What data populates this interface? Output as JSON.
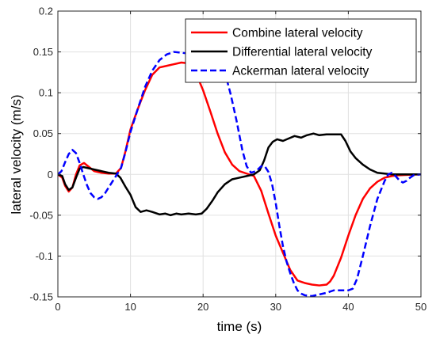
{
  "chart_data": {
    "type": "line",
    "title": "",
    "xlabel": "time (s)",
    "ylabel": "lateral velocity (m/s)",
    "xlim": [
      0,
      50
    ],
    "ylim": [
      -0.15,
      0.2
    ],
    "xticks": [
      0,
      10,
      20,
      30,
      40,
      50
    ],
    "xtick_labels": [
      "0",
      "10",
      "20",
      "30",
      "40",
      "50"
    ],
    "yticks": [
      -0.15,
      -0.1,
      -0.05,
      0,
      0.05,
      0.1,
      0.15,
      0.2
    ],
    "ytick_labels": [
      "-0.15",
      "-0.1",
      "-0.05",
      "0",
      "0.05",
      "0.1",
      "0.15",
      "0.2"
    ],
    "grid": true,
    "legend_position": "top-right",
    "series": [
      {
        "name": "Combine lateral velocity",
        "color": "#ff0000",
        "dash": "solid",
        "points": [
          [
            0,
            0
          ],
          [
            0.6,
            -0.004
          ],
          [
            1,
            -0.014
          ],
          [
            1.5,
            -0.021
          ],
          [
            2,
            -0.016
          ],
          [
            2.5,
            0
          ],
          [
            3,
            0.011
          ],
          [
            3.6,
            0.014
          ],
          [
            4.3,
            0.009
          ],
          [
            5,
            0.004
          ],
          [
            6,
            0.002
          ],
          [
            7,
            0.001
          ],
          [
            8,
            0.001
          ],
          [
            8.7,
            0.008
          ],
          [
            9.3,
            0.028
          ],
          [
            10,
            0.055
          ],
          [
            11,
            0.08
          ],
          [
            12,
            0.103
          ],
          [
            13,
            0.122
          ],
          [
            14,
            0.131
          ],
          [
            15,
            0.133
          ],
          [
            16,
            0.135
          ],
          [
            17,
            0.137
          ],
          [
            18,
            0.136
          ],
          [
            18.6,
            0.131
          ],
          [
            19.2,
            0.12
          ],
          [
            20,
            0.103
          ],
          [
            21,
            0.077
          ],
          [
            22,
            0.05
          ],
          [
            23,
            0.027
          ],
          [
            24,
            0.012
          ],
          [
            25,
            0.004
          ],
          [
            26,
            0.001
          ],
          [
            27,
            -0.002
          ],
          [
            28,
            -0.02
          ],
          [
            29,
            -0.048
          ],
          [
            30,
            -0.075
          ],
          [
            31,
            -0.096
          ],
          [
            32,
            -0.117
          ],
          [
            33,
            -0.13
          ],
          [
            34,
            -0.133
          ],
          [
            35,
            -0.135
          ],
          [
            36,
            -0.136
          ],
          [
            37,
            -0.135
          ],
          [
            37.5,
            -0.131
          ],
          [
            38,
            -0.124
          ],
          [
            39,
            -0.102
          ],
          [
            40,
            -0.075
          ],
          [
            41,
            -0.05
          ],
          [
            42,
            -0.03
          ],
          [
            43,
            -0.017
          ],
          [
            44,
            -0.009
          ],
          [
            45,
            -0.004
          ],
          [
            46,
            -0.002
          ],
          [
            47,
            -0.001
          ],
          [
            50,
            0
          ]
        ]
      },
      {
        "name": "Differential lateral velocity",
        "color": "#000000",
        "dash": "solid",
        "points": [
          [
            0,
            0
          ],
          [
            0.6,
            -0.002
          ],
          [
            1,
            -0.012
          ],
          [
            1.5,
            -0.019
          ],
          [
            2,
            -0.016
          ],
          [
            2.5,
            -0.004
          ],
          [
            3,
            0.007
          ],
          [
            3.5,
            0.009
          ],
          [
            4,
            0.008
          ],
          [
            5,
            0.006
          ],
          [
            6,
            0.004
          ],
          [
            7,
            0.002
          ],
          [
            8,
            0.001
          ],
          [
            8.6,
            -0.004
          ],
          [
            9.3,
            -0.015
          ],
          [
            10,
            -0.025
          ],
          [
            10.7,
            -0.04
          ],
          [
            11.4,
            -0.046
          ],
          [
            12.2,
            -0.044
          ],
          [
            13,
            -0.046
          ],
          [
            14,
            -0.049
          ],
          [
            14.8,
            -0.048
          ],
          [
            15.5,
            -0.05
          ],
          [
            16.3,
            -0.048
          ],
          [
            17,
            -0.049
          ],
          [
            18,
            -0.048
          ],
          [
            19,
            -0.049
          ],
          [
            19.8,
            -0.048
          ],
          [
            20.5,
            -0.042
          ],
          [
            21.3,
            -0.032
          ],
          [
            22,
            -0.022
          ],
          [
            23,
            -0.012
          ],
          [
            24,
            -0.006
          ],
          [
            25,
            -0.004
          ],
          [
            26,
            -0.002
          ],
          [
            27,
            0
          ],
          [
            27.8,
            0.005
          ],
          [
            28.4,
            0.017
          ],
          [
            29,
            0.033
          ],
          [
            29.6,
            0.04
          ],
          [
            30.2,
            0.043
          ],
          [
            31,
            0.041
          ],
          [
            31.8,
            0.044
          ],
          [
            32.6,
            0.047
          ],
          [
            33.5,
            0.045
          ],
          [
            34.3,
            0.048
          ],
          [
            35.2,
            0.05
          ],
          [
            36,
            0.048
          ],
          [
            37,
            0.049
          ],
          [
            38,
            0.049
          ],
          [
            39,
            0.049
          ],
          [
            39.6,
            0.041
          ],
          [
            40.3,
            0.028
          ],
          [
            41,
            0.02
          ],
          [
            42,
            0.012
          ],
          [
            43,
            0.006
          ],
          [
            44,
            0.002
          ],
          [
            45,
            0.001
          ],
          [
            46,
            0
          ],
          [
            50,
            0
          ]
        ]
      },
      {
        "name": "Ackerman lateral velocity",
        "color": "#0000ff",
        "dash": "dashed",
        "points": [
          [
            0,
            0
          ],
          [
            0.5,
            0.004
          ],
          [
            1,
            0.015
          ],
          [
            1.5,
            0.025
          ],
          [
            2,
            0.03
          ],
          [
            2.5,
            0.026
          ],
          [
            3,
            0.014
          ],
          [
            3.5,
            0
          ],
          [
            4,
            -0.013
          ],
          [
            4.5,
            -0.023
          ],
          [
            5,
            -0.028
          ],
          [
            5.5,
            -0.03
          ],
          [
            6,
            -0.028
          ],
          [
            6.5,
            -0.023
          ],
          [
            7,
            -0.016
          ],
          [
            8,
            -0.002
          ],
          [
            8.7,
            0.008
          ],
          [
            9.3,
            0.027
          ],
          [
            10,
            0.052
          ],
          [
            11,
            0.08
          ],
          [
            12,
            0.107
          ],
          [
            13,
            0.127
          ],
          [
            14,
            0.14
          ],
          [
            15,
            0.147
          ],
          [
            16,
            0.15
          ],
          [
            17,
            0.149
          ],
          [
            18,
            0.148
          ],
          [
            19,
            0.146
          ],
          [
            20,
            0.143
          ],
          [
            21,
            0.142
          ],
          [
            22,
            0.14
          ],
          [
            23,
            0.125
          ],
          [
            23.8,
            0.098
          ],
          [
            24.6,
            0.066
          ],
          [
            25.4,
            0.03
          ],
          [
            26,
            0.01
          ],
          [
            26.6,
            0.002
          ],
          [
            27.3,
            0.004
          ],
          [
            28,
            0.01
          ],
          [
            28.5,
            0.01
          ],
          [
            29,
            0.003
          ],
          [
            29.5,
            -0.012
          ],
          [
            30,
            -0.035
          ],
          [
            30.5,
            -0.063
          ],
          [
            31,
            -0.088
          ],
          [
            31.5,
            -0.107
          ],
          [
            32,
            -0.121
          ],
          [
            32.5,
            -0.133
          ],
          [
            33,
            -0.142
          ],
          [
            33.5,
            -0.146
          ],
          [
            34,
            -0.148
          ],
          [
            35,
            -0.149
          ],
          [
            36,
            -0.147
          ],
          [
            37,
            -0.145
          ],
          [
            38,
            -0.142
          ],
          [
            39,
            -0.142
          ],
          [
            40,
            -0.142
          ],
          [
            40.6,
            -0.14
          ],
          [
            41.2,
            -0.128
          ],
          [
            42,
            -0.1
          ],
          [
            43,
            -0.063
          ],
          [
            44,
            -0.03
          ],
          [
            45,
            -0.008
          ],
          [
            45.5,
            0
          ],
          [
            46,
            0.002
          ],
          [
            46.5,
            -0.002
          ],
          [
            47,
            -0.007
          ],
          [
            47.5,
            -0.01
          ],
          [
            48,
            -0.008
          ],
          [
            48.5,
            -0.004
          ],
          [
            49,
            -0.001
          ],
          [
            50,
            0
          ]
        ]
      }
    ]
  }
}
